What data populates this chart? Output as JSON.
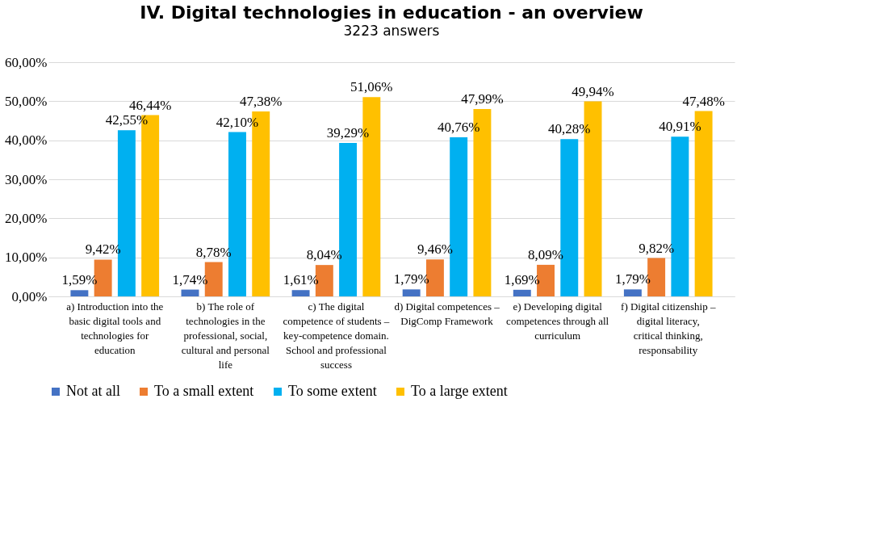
{
  "chart_data": {
    "type": "bar",
    "title": "IV. Digital technologies in education - an overview",
    "subtitle": "3223 answers",
    "categories": [
      "a) Introduction into the basic digital tools and technologies for education",
      "b) The role of technologies in the professional, social, cultural and personal life",
      "c) The digital competence of students – key-competence domain. School and professional success",
      "d) Digital competences – DigComp Framework",
      "e) Developing digital competences through all curriculum",
      "f) Digital citizenship – digital literacy, critical thinking, responsability"
    ],
    "series": [
      {
        "name": "Not at all",
        "color": "#4472c4",
        "values": [
          1.59,
          1.74,
          1.61,
          1.79,
          1.69,
          1.79
        ],
        "value_labels": [
          "1,59%",
          "1,74%",
          "1,61%",
          "1,79%",
          "1,69%",
          "1,79%"
        ]
      },
      {
        "name": "To a small extent",
        "color": "#ed7d31",
        "values": [
          9.42,
          8.78,
          8.04,
          9.46,
          8.09,
          9.82
        ],
        "value_labels": [
          "9,42%",
          "8,78%",
          "8,04%",
          "9,46%",
          "8,09%",
          "9,82%"
        ]
      },
      {
        "name": "To some extent",
        "color": "#00b0f0",
        "values": [
          42.55,
          42.1,
          39.29,
          40.76,
          40.28,
          40.91
        ],
        "value_labels": [
          "42,55%",
          "42,10%",
          "39,29%",
          "40,76%",
          "40,28%",
          "40,91%"
        ]
      },
      {
        "name": "To a large extent",
        "color": "#ffc000",
        "values": [
          46.44,
          47.38,
          51.06,
          47.99,
          49.94,
          47.48
        ],
        "value_labels": [
          "46,44%",
          "47,38%",
          "51,06%",
          "47,99%",
          "49,94%",
          "47,48%"
        ]
      }
    ],
    "ylim": [
      0,
      60
    ],
    "yticks": [
      {
        "value": 0,
        "label": "0,00%"
      },
      {
        "value": 10,
        "label": "10,00%"
      },
      {
        "value": 20,
        "label": "20,00%"
      },
      {
        "value": 30,
        "label": "30,00%"
      },
      {
        "value": 40,
        "label": "40,00%"
      },
      {
        "value": 50,
        "label": "50,00%"
      },
      {
        "value": 60,
        "label": "60,00%"
      }
    ],
    "grid": "y",
    "legend": "bottom"
  }
}
